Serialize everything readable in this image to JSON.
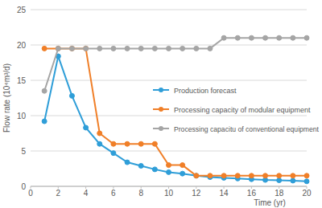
{
  "chart_data": {
    "type": "line",
    "x_label": "Time  (yr)",
    "y_label": "Flow rate  (10⁴m³/d)",
    "x": [
      1,
      2,
      3,
      4,
      5,
      6,
      7,
      8,
      9,
      10,
      11,
      12,
      13,
      14,
      15,
      16,
      17,
      18,
      19,
      20
    ],
    "series": [
      {
        "name": "Production forecast",
        "color": "#2f9ed8",
        "marker": "circle",
        "values": [
          9.2,
          18.4,
          12.8,
          8.3,
          6.0,
          4.7,
          3.4,
          2.9,
          2.4,
          2.0,
          1.8,
          1.5,
          1.3,
          1.2,
          1.1,
          1.0,
          0.9,
          0.85,
          0.8,
          0.7
        ]
      },
      {
        "name": "Processing capacity of modular equipment",
        "color": "#f07f28",
        "marker": "circle",
        "values": [
          19.5,
          19.5,
          19.5,
          19.5,
          7.5,
          6.0,
          6.0,
          6.0,
          6.0,
          3.0,
          3.0,
          1.5,
          1.5,
          1.5,
          1.5,
          1.5,
          1.5,
          1.5,
          1.5,
          1.5
        ]
      },
      {
        "name": "Processing capacitu of conventional equipment",
        "color": "#a5a5a5",
        "marker": "circle",
        "values": [
          13.5,
          19.5,
          19.5,
          19.5,
          19.5,
          19.5,
          19.5,
          19.5,
          19.5,
          19.5,
          19.5,
          19.5,
          19.5,
          21.0,
          21.0,
          21.0,
          21.0,
          21.0,
          21.0,
          21.0
        ]
      }
    ],
    "xlim": [
      0,
      20
    ],
    "xticks": [
      0,
      2,
      4,
      6,
      8,
      10,
      12,
      14,
      16,
      18,
      20
    ],
    "ylim": [
      0,
      25
    ],
    "yticks": [
      0,
      5,
      10,
      15,
      20,
      25
    ],
    "grid": true,
    "legend": "right"
  }
}
